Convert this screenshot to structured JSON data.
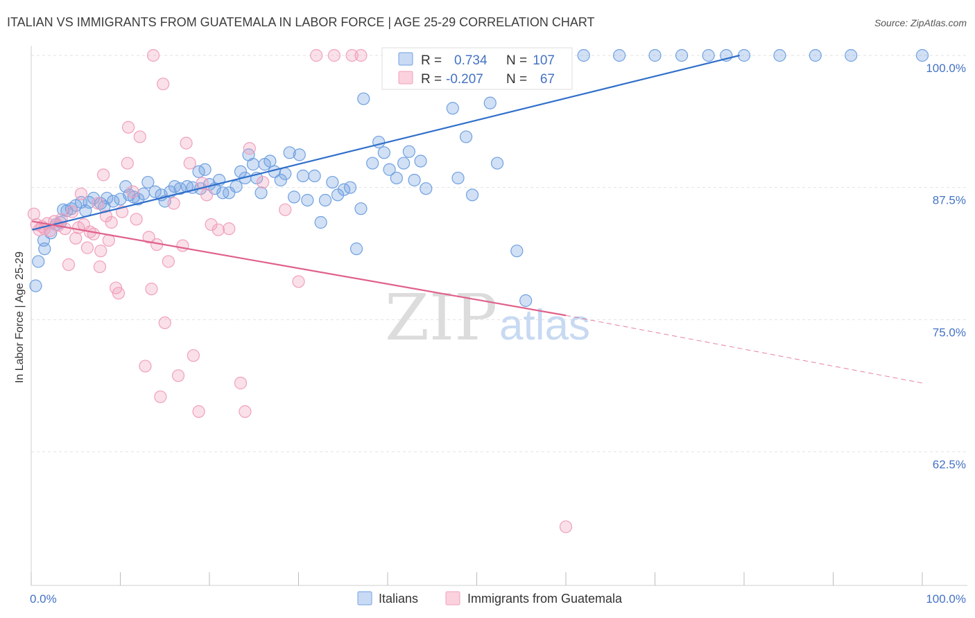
{
  "title": "ITALIAN VS IMMIGRANTS FROM GUATEMALA IN LABOR FORCE | AGE 25-29 CORRELATION CHART",
  "source": "Source: ZipAtlas.com",
  "watermark": {
    "zip": "ZIP",
    "atlas": "atlas"
  },
  "legend_top": {
    "r_label": "R =",
    "n_label": "N =",
    "rows": [
      {
        "r": "0.734",
        "n": "107"
      },
      {
        "r": "-0.207",
        "n": "67"
      }
    ]
  },
  "chart_data": {
    "type": "scatter",
    "ylabel": "In Labor Force | Age 25-29",
    "xlim": [
      0,
      100
    ],
    "ylim": [
      51,
      101.5
    ],
    "x_tick_labels": [
      "0.0%",
      "100.0%"
    ],
    "y_ticks": [
      {
        "value": 62.5,
        "label": "62.5%"
      },
      {
        "value": 75.0,
        "label": "75.0%"
      },
      {
        "value": 87.5,
        "label": "87.5%"
      },
      {
        "value": 100.0,
        "label": "100.0%"
      }
    ],
    "grid": true,
    "series": [
      {
        "name": "Italians",
        "color": "#6fa0e0",
        "line_color": "#2f6fca",
        "trend": {
          "x0": 0.1,
          "y0": 83.5,
          "x1": 79.5,
          "y1": 100.0
        },
        "points": [
          [
            0.5,
            78.2
          ],
          [
            0.8,
            80.5
          ],
          [
            1.4,
            82.5
          ],
          [
            1.5,
            81.7
          ],
          [
            2.2,
            83.2
          ],
          [
            2.8,
            84.0
          ],
          [
            3.3,
            84.2
          ],
          [
            3.6,
            85.4
          ],
          [
            4.0,
            85.3
          ],
          [
            4.5,
            85.5
          ],
          [
            5.0,
            85.8
          ],
          [
            5.6,
            86.1
          ],
          [
            6.1,
            85.3
          ],
          [
            6.5,
            86.1
          ],
          [
            7.0,
            86.5
          ],
          [
            7.8,
            86.0
          ],
          [
            8.2,
            85.7
          ],
          [
            8.5,
            86.5
          ],
          [
            9.2,
            86.2
          ],
          [
            10.0,
            86.4
          ],
          [
            10.6,
            87.6
          ],
          [
            11.0,
            86.8
          ],
          [
            11.5,
            86.6
          ],
          [
            12.0,
            86.4
          ],
          [
            12.6,
            86.9
          ],
          [
            13.1,
            88.0
          ],
          [
            13.9,
            87.1
          ],
          [
            14.6,
            86.8
          ],
          [
            15.0,
            86.2
          ],
          [
            15.6,
            87.1
          ],
          [
            16.1,
            87.6
          ],
          [
            16.7,
            87.4
          ],
          [
            17.5,
            87.6
          ],
          [
            18.1,
            87.5
          ],
          [
            18.8,
            89.0
          ],
          [
            19.0,
            87.4
          ],
          [
            19.5,
            89.2
          ],
          [
            20.0,
            87.8
          ],
          [
            20.6,
            87.4
          ],
          [
            21.1,
            88.2
          ],
          [
            21.5,
            87.0
          ],
          [
            22.2,
            87.0
          ],
          [
            23.0,
            87.6
          ],
          [
            23.5,
            89.0
          ],
          [
            24.0,
            88.4
          ],
          [
            24.4,
            90.6
          ],
          [
            24.9,
            89.7
          ],
          [
            25.3,
            88.4
          ],
          [
            25.8,
            87.0
          ],
          [
            26.2,
            89.7
          ],
          [
            26.8,
            90.0
          ],
          [
            27.3,
            89.0
          ],
          [
            28.0,
            88.2
          ],
          [
            28.5,
            88.8
          ],
          [
            29.0,
            90.8
          ],
          [
            29.5,
            86.6
          ],
          [
            30.1,
            90.6
          ],
          [
            30.5,
            88.6
          ],
          [
            31.0,
            86.3
          ],
          [
            31.8,
            88.6
          ],
          [
            32.5,
            84.2
          ],
          [
            33.0,
            86.3
          ],
          [
            33.8,
            88.0
          ],
          [
            34.4,
            86.8
          ],
          [
            35.1,
            87.3
          ],
          [
            35.8,
            87.5
          ],
          [
            36.5,
            81.7
          ],
          [
            37.0,
            85.5
          ],
          [
            37.3,
            95.9
          ],
          [
            38.3,
            89.8
          ],
          [
            39.0,
            91.8
          ],
          [
            39.6,
            90.8
          ],
          [
            40.2,
            89.2
          ],
          [
            41.0,
            88.4
          ],
          [
            41.8,
            89.8
          ],
          [
            42.4,
            90.9
          ],
          [
            43.0,
            88.2
          ],
          [
            43.7,
            90.0
          ],
          [
            44.3,
            87.4
          ],
          [
            45.3,
            100.0
          ],
          [
            45.8,
            100.0
          ],
          [
            46.5,
            100.0
          ],
          [
            47.3,
            95.0
          ],
          [
            47.9,
            88.4
          ],
          [
            48.8,
            92.3
          ],
          [
            49.5,
            86.8
          ],
          [
            51.0,
            100.0
          ],
          [
            51.5,
            95.5
          ],
          [
            52.3,
            89.8
          ],
          [
            53.2,
            100.0
          ],
          [
            54.5,
            81.5
          ],
          [
            55.5,
            76.8
          ],
          [
            56.0,
            100.0
          ],
          [
            57.0,
            100.0
          ],
          [
            58.5,
            100.0
          ],
          [
            60.0,
            100.0
          ],
          [
            62.0,
            100.0
          ],
          [
            66.0,
            100.0
          ],
          [
            70.0,
            100.0
          ],
          [
            73.0,
            100.0
          ],
          [
            76.0,
            100.0
          ],
          [
            78.0,
            100.0
          ],
          [
            80.0,
            100.0
          ],
          [
            84.0,
            100.0
          ],
          [
            88.0,
            100.0
          ],
          [
            92.0,
            100.0
          ],
          [
            100.0,
            100.0
          ]
        ]
      },
      {
        "name": "Immigrants from Guatemala",
        "color": "#f0a0bc",
        "line_color": "#e0608a",
        "trend": {
          "x0": 0.1,
          "y0": 84.3,
          "x1": 60.0,
          "y1": 75.4
        },
        "trend_dashed": {
          "x0": 60.0,
          "y0": 75.4,
          "x1": 100.0,
          "y1": 69.0
        },
        "points": [
          [
            0.3,
            85.0
          ],
          [
            0.6,
            84.0
          ],
          [
            0.9,
            83.5
          ],
          [
            1.2,
            83.8
          ],
          [
            1.5,
            83.6
          ],
          [
            1.8,
            84.1
          ],
          [
            2.1,
            83.4
          ],
          [
            2.6,
            84.3
          ],
          [
            3.0,
            83.9
          ],
          [
            3.4,
            84.5
          ],
          [
            3.8,
            83.6
          ],
          [
            4.2,
            80.2
          ],
          [
            4.6,
            85.2
          ],
          [
            5.0,
            82.7
          ],
          [
            5.3,
            83.7
          ],
          [
            5.6,
            86.9
          ],
          [
            5.9,
            84.0
          ],
          [
            6.3,
            81.8
          ],
          [
            6.6,
            83.3
          ],
          [
            7.0,
            83.1
          ],
          [
            7.5,
            86.0
          ],
          [
            7.7,
            80.0
          ],
          [
            7.8,
            81.5
          ],
          [
            8.1,
            88.7
          ],
          [
            8.4,
            84.8
          ],
          [
            8.7,
            82.5
          ],
          [
            9.0,
            84.2
          ],
          [
            9.5,
            78.0
          ],
          [
            9.8,
            77.5
          ],
          [
            10.2,
            85.2
          ],
          [
            10.8,
            89.8
          ],
          [
            10.9,
            93.2
          ],
          [
            11.4,
            87.1
          ],
          [
            11.8,
            84.5
          ],
          [
            12.2,
            92.3
          ],
          [
            12.8,
            70.6
          ],
          [
            13.2,
            82.8
          ],
          [
            13.5,
            77.9
          ],
          [
            13.7,
            100.0
          ],
          [
            14.1,
            82.1
          ],
          [
            14.5,
            67.7
          ],
          [
            14.8,
            97.3
          ],
          [
            15.0,
            74.7
          ],
          [
            15.4,
            80.5
          ],
          [
            16.0,
            86.0
          ],
          [
            16.5,
            69.7
          ],
          [
            17.0,
            82.0
          ],
          [
            17.4,
            91.7
          ],
          [
            17.8,
            89.8
          ],
          [
            18.2,
            71.6
          ],
          [
            18.8,
            66.3
          ],
          [
            19.2,
            87.9
          ],
          [
            19.7,
            86.8
          ],
          [
            20.2,
            84.0
          ],
          [
            21.0,
            83.5
          ],
          [
            22.2,
            83.6
          ],
          [
            23.5,
            69.0
          ],
          [
            24.0,
            66.3
          ],
          [
            24.5,
            91.2
          ],
          [
            26.0,
            88.0
          ],
          [
            28.5,
            85.4
          ],
          [
            30.0,
            78.6
          ],
          [
            32.0,
            100.0
          ],
          [
            34.0,
            100.0
          ],
          [
            36.0,
            100.0
          ],
          [
            37.0,
            100.0
          ],
          [
            60.0,
            55.4
          ]
        ]
      }
    ]
  }
}
